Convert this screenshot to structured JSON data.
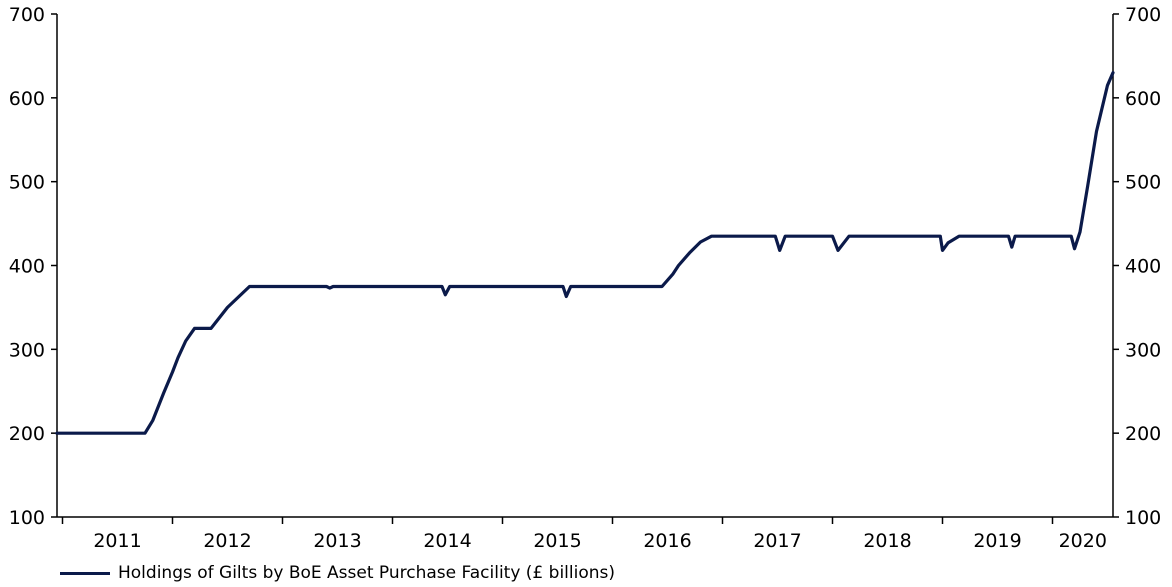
{
  "chart_data": {
    "type": "line",
    "title": "",
    "xlabel": "",
    "ylabel": "",
    "ylim": [
      100,
      700
    ],
    "y_ticks": [
      100,
      200,
      300,
      400,
      500,
      600,
      700
    ],
    "y_axis_right": true,
    "grid": false,
    "legend_position": "bottom-left",
    "x_range": [
      2010.95,
      2020.55
    ],
    "x_ticks": [
      "2011",
      "2012",
      "2013",
      "2014",
      "2015",
      "2016",
      "2017",
      "2018",
      "2019",
      "2020"
    ],
    "series": [
      {
        "name": "Holdings of Gilts by BoE Asset Purchase Facility (£ billions)",
        "color": "#0b1a4a",
        "x": [
          2010.95,
          2011.75,
          2011.82,
          2011.92,
          2012.0,
          2012.05,
          2012.12,
          2012.2,
          2012.35,
          2012.5,
          2012.7,
          2013.0,
          2013.4,
          2013.43,
          2013.46,
          2013.8,
          2014.0,
          2014.45,
          2014.48,
          2014.52,
          2014.9,
          2015.0,
          2015.55,
          2015.58,
          2015.62,
          2015.75,
          2015.8,
          2016.1,
          2016.45,
          2016.55,
          2016.6,
          2016.7,
          2016.8,
          2016.9,
          2017.0,
          2017.3,
          2017.48,
          2017.52,
          2017.57,
          2017.95,
          2018.0,
          2018.05,
          2018.15,
          2018.5,
          2018.98,
          2019.0,
          2019.05,
          2019.15,
          2019.5,
          2019.6,
          2019.63,
          2019.66,
          2019.75,
          2020.0,
          2020.17,
          2020.2,
          2020.25,
          2020.32,
          2020.4,
          2020.5,
          2020.55
        ],
        "y": [
          200,
          200,
          215,
          248,
          273,
          290,
          310,
          325,
          325,
          350,
          375,
          375,
          375,
          373,
          375,
          375,
          375,
          375,
          365,
          375,
          375,
          375,
          375,
          363,
          375,
          375,
          375,
          375,
          375,
          390,
          400,
          415,
          428,
          435,
          435,
          435,
          435,
          418,
          435,
          435,
          435,
          418,
          435,
          435,
          435,
          418,
          427,
          435,
          435,
          435,
          422,
          435,
          435,
          435,
          435,
          420,
          440,
          495,
          560,
          615,
          630
        ]
      }
    ]
  }
}
